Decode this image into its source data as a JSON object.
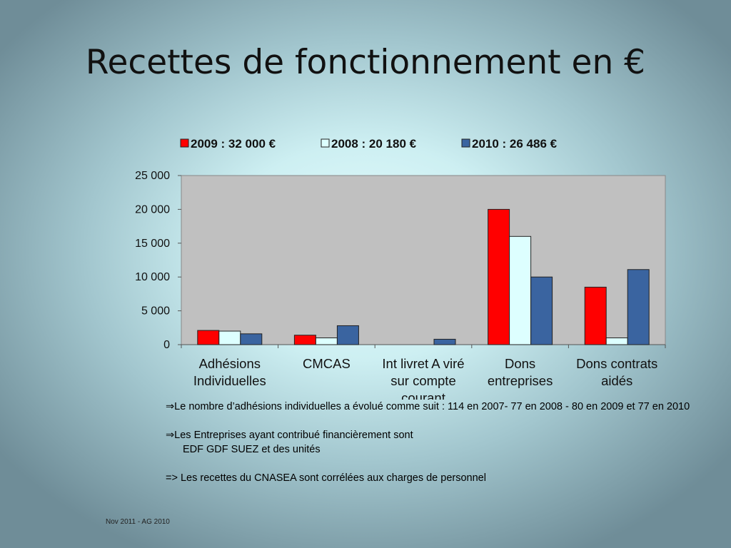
{
  "slide": {
    "title": "Recettes de fonctionnement en €",
    "footer": "Nov 2011 - AG 2010"
  },
  "notes": {
    "line1_arrow": "⇒",
    "line1": "Le nombre d’adhésions individuelles a évolué comme suit : 114 en 2007- 77 en 2008 - 80 en 2009 et 77 en 2010",
    "line2_arrow": "⇒",
    "line2": "Les Entreprises ayant contribué financièrement sont",
    "line3": "EDF GDF SUEZ et des unités",
    "line4": "=> Les recettes du CNASEA sont corrélées aux charges de personnel"
  },
  "chart_data": {
    "type": "bar",
    "title": "",
    "xlabel": "",
    "ylabel": "",
    "categories": [
      [
        "Adhésions",
        "Individuelles"
      ],
      [
        "CMCAS"
      ],
      [
        "Int livret A viré",
        "sur compte",
        "courant"
      ],
      [
        "Dons",
        "entreprises"
      ],
      [
        "Dons contrats",
        "aidés"
      ]
    ],
    "series": [
      {
        "name": "2009 : 32 000 €",
        "color": "#ff0000",
        "values": [
          2100,
          1400,
          0,
          20000,
          8500
        ]
      },
      {
        "name": "2008 : 20 180 €",
        "color": "#ddffff",
        "values": [
          2000,
          1000,
          0,
          16000,
          1000
        ]
      },
      {
        "name": "2010 : 26 486 €",
        "color": "#3a64a0",
        "values": [
          1600,
          2800,
          800,
          10000,
          11100
        ]
      }
    ],
    "ylim": [
      0,
      25000
    ],
    "yticks": [
      0,
      5000,
      10000,
      15000,
      20000,
      25000
    ],
    "ytick_labels": [
      "0",
      "5 000",
      "10 000",
      "15 000",
      "20 000",
      "25 000"
    ],
    "grid": false,
    "legend_position": "top",
    "plot_background": "#c0c0c0"
  }
}
